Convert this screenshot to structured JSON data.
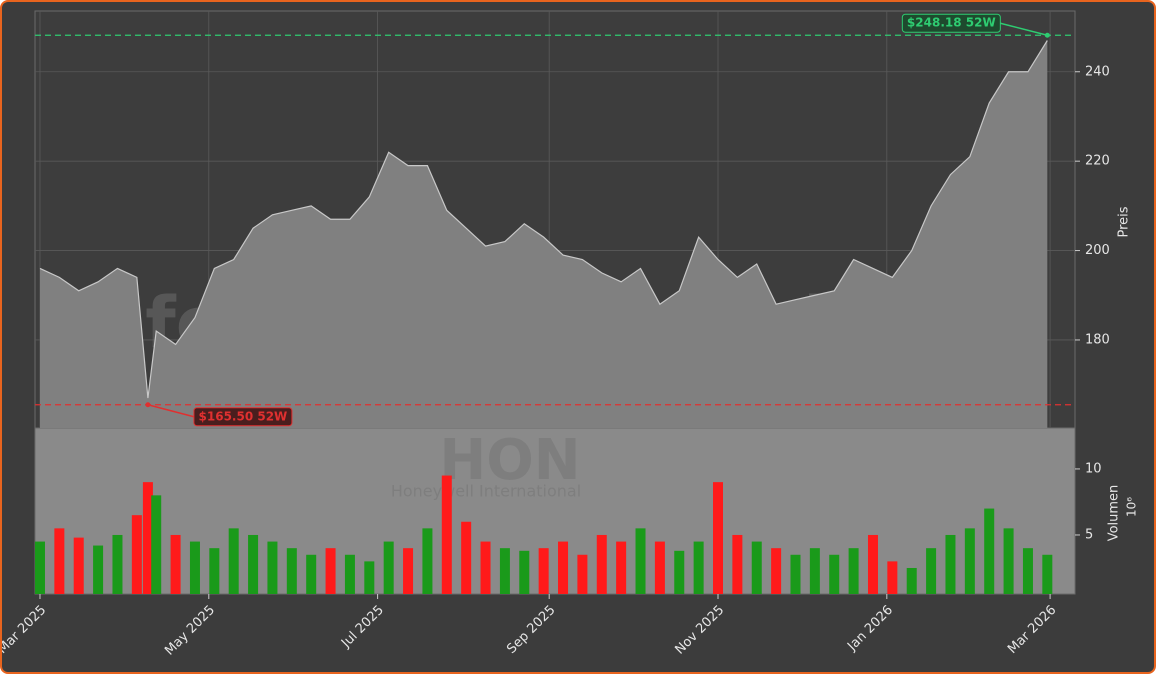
{
  "chart_data": {
    "type": "stock",
    "watermark": "forexsignale.trade",
    "symbol": "HON",
    "company": "Honeywell International",
    "y_label": "Preis",
    "y2_label": "Volumen",
    "y2_scale_label": "10⁶",
    "x": [
      0,
      7,
      14,
      21,
      28,
      35,
      39,
      42,
      49,
      56,
      63,
      70,
      77,
      84,
      91,
      98,
      105,
      112,
      119,
      126,
      133,
      140,
      147,
      154,
      161,
      168,
      175,
      182,
      189,
      196,
      203,
      210,
      217,
      224,
      231,
      238,
      245,
      252,
      259,
      266,
      273,
      280,
      287,
      294,
      301,
      308,
      315,
      322,
      329,
      336,
      343,
      350,
      357,
      364
    ],
    "xlim": [
      -1.8,
      374
    ],
    "xticks": [
      {
        "value": 0,
        "label": "Mar 2025"
      },
      {
        "value": 61,
        "label": "May 2025"
      },
      {
        "value": 122,
        "label": "Jul 2025"
      },
      {
        "value": 184,
        "label": "Sep 2025"
      },
      {
        "value": 245,
        "label": "Nov 2025"
      },
      {
        "value": 306,
        "label": "Jan 2026"
      },
      {
        "value": 365,
        "label": "Mar 2026"
      }
    ],
    "series": [
      {
        "name": "Preis",
        "color": "#808080",
        "values": [
          196,
          194,
          191,
          193,
          196,
          194,
          167,
          182,
          179,
          185,
          196,
          198,
          205,
          208,
          209,
          210,
          207,
          207,
          212,
          222,
          219,
          219,
          209,
          205,
          201,
          202,
          206,
          203,
          199,
          198,
          195,
          193,
          196,
          188,
          191,
          203,
          198,
          194,
          197,
          188,
          189,
          190,
          191,
          198,
          196,
          194,
          200,
          210,
          217,
          221,
          233,
          240,
          240,
          247
        ]
      },
      {
        "name": "Volumen",
        "axis": "y2",
        "values": [
          4.5,
          5.5,
          4.8,
          4.2,
          5.0,
          6.5,
          9.0,
          8.0,
          5.0,
          4.5,
          4.0,
          5.5,
          5.0,
          4.5,
          4.0,
          3.5,
          4.0,
          3.5,
          3.0,
          4.5,
          4.0,
          5.5,
          9.5,
          6.0,
          4.5,
          4.0,
          3.8,
          4.0,
          4.5,
          3.5,
          5.0,
          4.5,
          5.5,
          4.5,
          3.8,
          4.5,
          9.0,
          5.0,
          4.5,
          4.0,
          3.5,
          4.0,
          3.5,
          4.0,
          5.0,
          3.0,
          2.5,
          4.0,
          5.0,
          5.5,
          7.0,
          5.5,
          4.0,
          3.5
        ]
      }
    ],
    "up_color": "#1a9a1a",
    "down_color": "#ff1a1a",
    "ylim": [
      160.3,
      253.6
    ],
    "yticks": [
      180,
      200,
      220,
      240
    ],
    "y2lim": [
      0.53,
      13.1
    ],
    "y2ticks": [
      5,
      10
    ],
    "grid": true,
    "annotations": [
      {
        "text": "$248.18 52W",
        "value": 248.18,
        "x": 364,
        "color": "#2ecc71"
      },
      {
        "text": "$165.50 52W",
        "value": 165.5,
        "x": 39,
        "color": "#e03030"
      }
    ]
  }
}
